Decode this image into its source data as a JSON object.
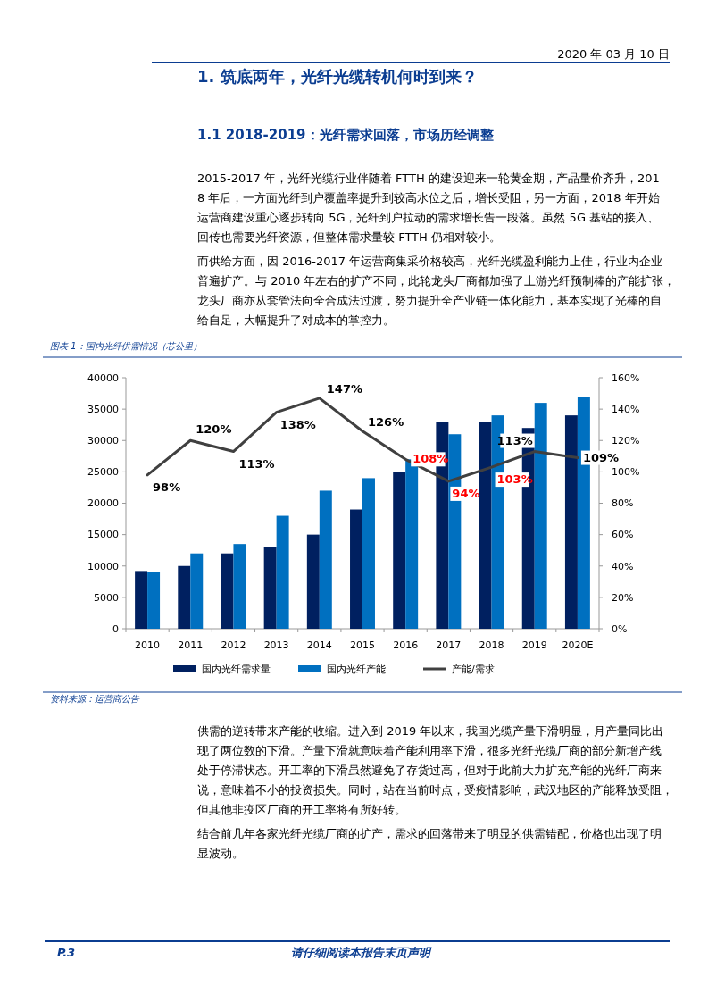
{
  "chart_data": {
    "type": "bar",
    "title": "图表 1：国内光纤供需情况（芯公里）",
    "categories": [
      "2010",
      "2011",
      "2012",
      "2013",
      "2014",
      "2015",
      "2016",
      "2017",
      "2018",
      "2019",
      "2020E"
    ],
    "series": [
      {
        "name": "国内光纤需求量",
        "color": "#002060",
        "values": [
          9200,
          10000,
          12000,
          13000,
          15000,
          19000,
          25000,
          33000,
          33000,
          32000,
          34000
        ]
      },
      {
        "name": "国内光纤产能",
        "color": "#0070c0",
        "values": [
          9000,
          12000,
          13500,
          18000,
          22000,
          24000,
          27000,
          31000,
          34000,
          36000,
          37000
        ]
      },
      {
        "name": "产能/需求",
        "type": "line",
        "axis": "y2",
        "color": "#404040",
        "values": [
          98,
          120,
          113,
          138,
          147,
          126,
          108,
          94,
          103,
          113,
          109
        ],
        "value_labels": [
          "98%",
          "120%",
          "113%",
          "138%",
          "147%",
          "126%",
          "108%",
          "94%",
          "103%",
          "113%",
          "109%"
        ],
        "colors": [
          "#000000",
          "#000000",
          "#000000",
          "#000000",
          "#000000",
          "#000000",
          "#ff0000",
          "#ff0000",
          "#ff0000",
          "#000000",
          "#000000"
        ]
      }
    ],
    "ylim": [
      0,
      40000
    ],
    "yticks": [
      0,
      5000,
      10000,
      15000,
      20000,
      25000,
      30000,
      35000,
      40000
    ],
    "y2lim": [
      0,
      160
    ],
    "y2ticks": [
      {
        "value": 0,
        "label": "0%"
      },
      {
        "value": 20,
        "label": "20%"
      },
      {
        "value": 40,
        "label": "40%"
      },
      {
        "value": 60,
        "label": "60%"
      },
      {
        "value": 80,
        "label": "80%"
      },
      {
        "value": 100,
        "label": "100%"
      },
      {
        "value": 120,
        "label": "120%"
      },
      {
        "value": 140,
        "label": "140%"
      },
      {
        "value": 160,
        "label": "160%"
      }
    ],
    "legend": "bottom",
    "annotations": [
      "2020 年 03 月 10 日",
      "1. 筑底两年，光纤光缆转机何时到来？",
      "1.1 2018-2019：光纤需求回落，市场历经调整",
      "2015-2017 年，光纤光缆行业伴随着 FTTH 的建设迎来一轮黄金期，产品量价齐升，2018 年后，一方面光纤到户覆盖率提升到较高水位之后，增长受阻，另一方面，2018 年开始运营商建设重心逐步转向 5G，光纤到户拉动的需求增长告一段落。虽然 5G 基站的接入、回传也需要光纤资源，但整体需求量较 FTTH 仍相对较小。",
      "而供给方面，因 2016-2017 年运营商集采价格较高，光纤光缆盈利能力上佳，行业内企业普遍扩产。与 2010 年左右的扩产不同，此轮龙头厂商都加强了上游光纤预制棒的产能扩张，龙头厂商亦从套管法向全合成法过渡，努力提升全产业链一体化能力，基本实现了光棒的自给自足，大幅提升了对成本的掌控力。",
      "资料来源：运营商公告",
      "供需的逆转带来产能的收缩。进入到 2019 年以来，我国光缆产量下滑明显，月产量同比出现了两位数的下滑。产量下滑就意味着产能利用率下滑，很多光纤光缆厂商的部分新增产线处于停滞状态。开工率的下滑虽然避免了存货过高，但对于此前大力扩充产能的光纤厂商来说，意味着不小的投资损失。同时，站在当前时点，受疫情影响，武汉地区的产能释放受阻，但其他非疫区厂商的开工率将有所好转。",
      "结合前几年各家光纤光缆厂商的扩产，需求的回落带来了明显的供需错配，价格也出现了明显波动。",
      "P.3",
      "请仔细阅读本报告末页声明"
    ]
  }
}
